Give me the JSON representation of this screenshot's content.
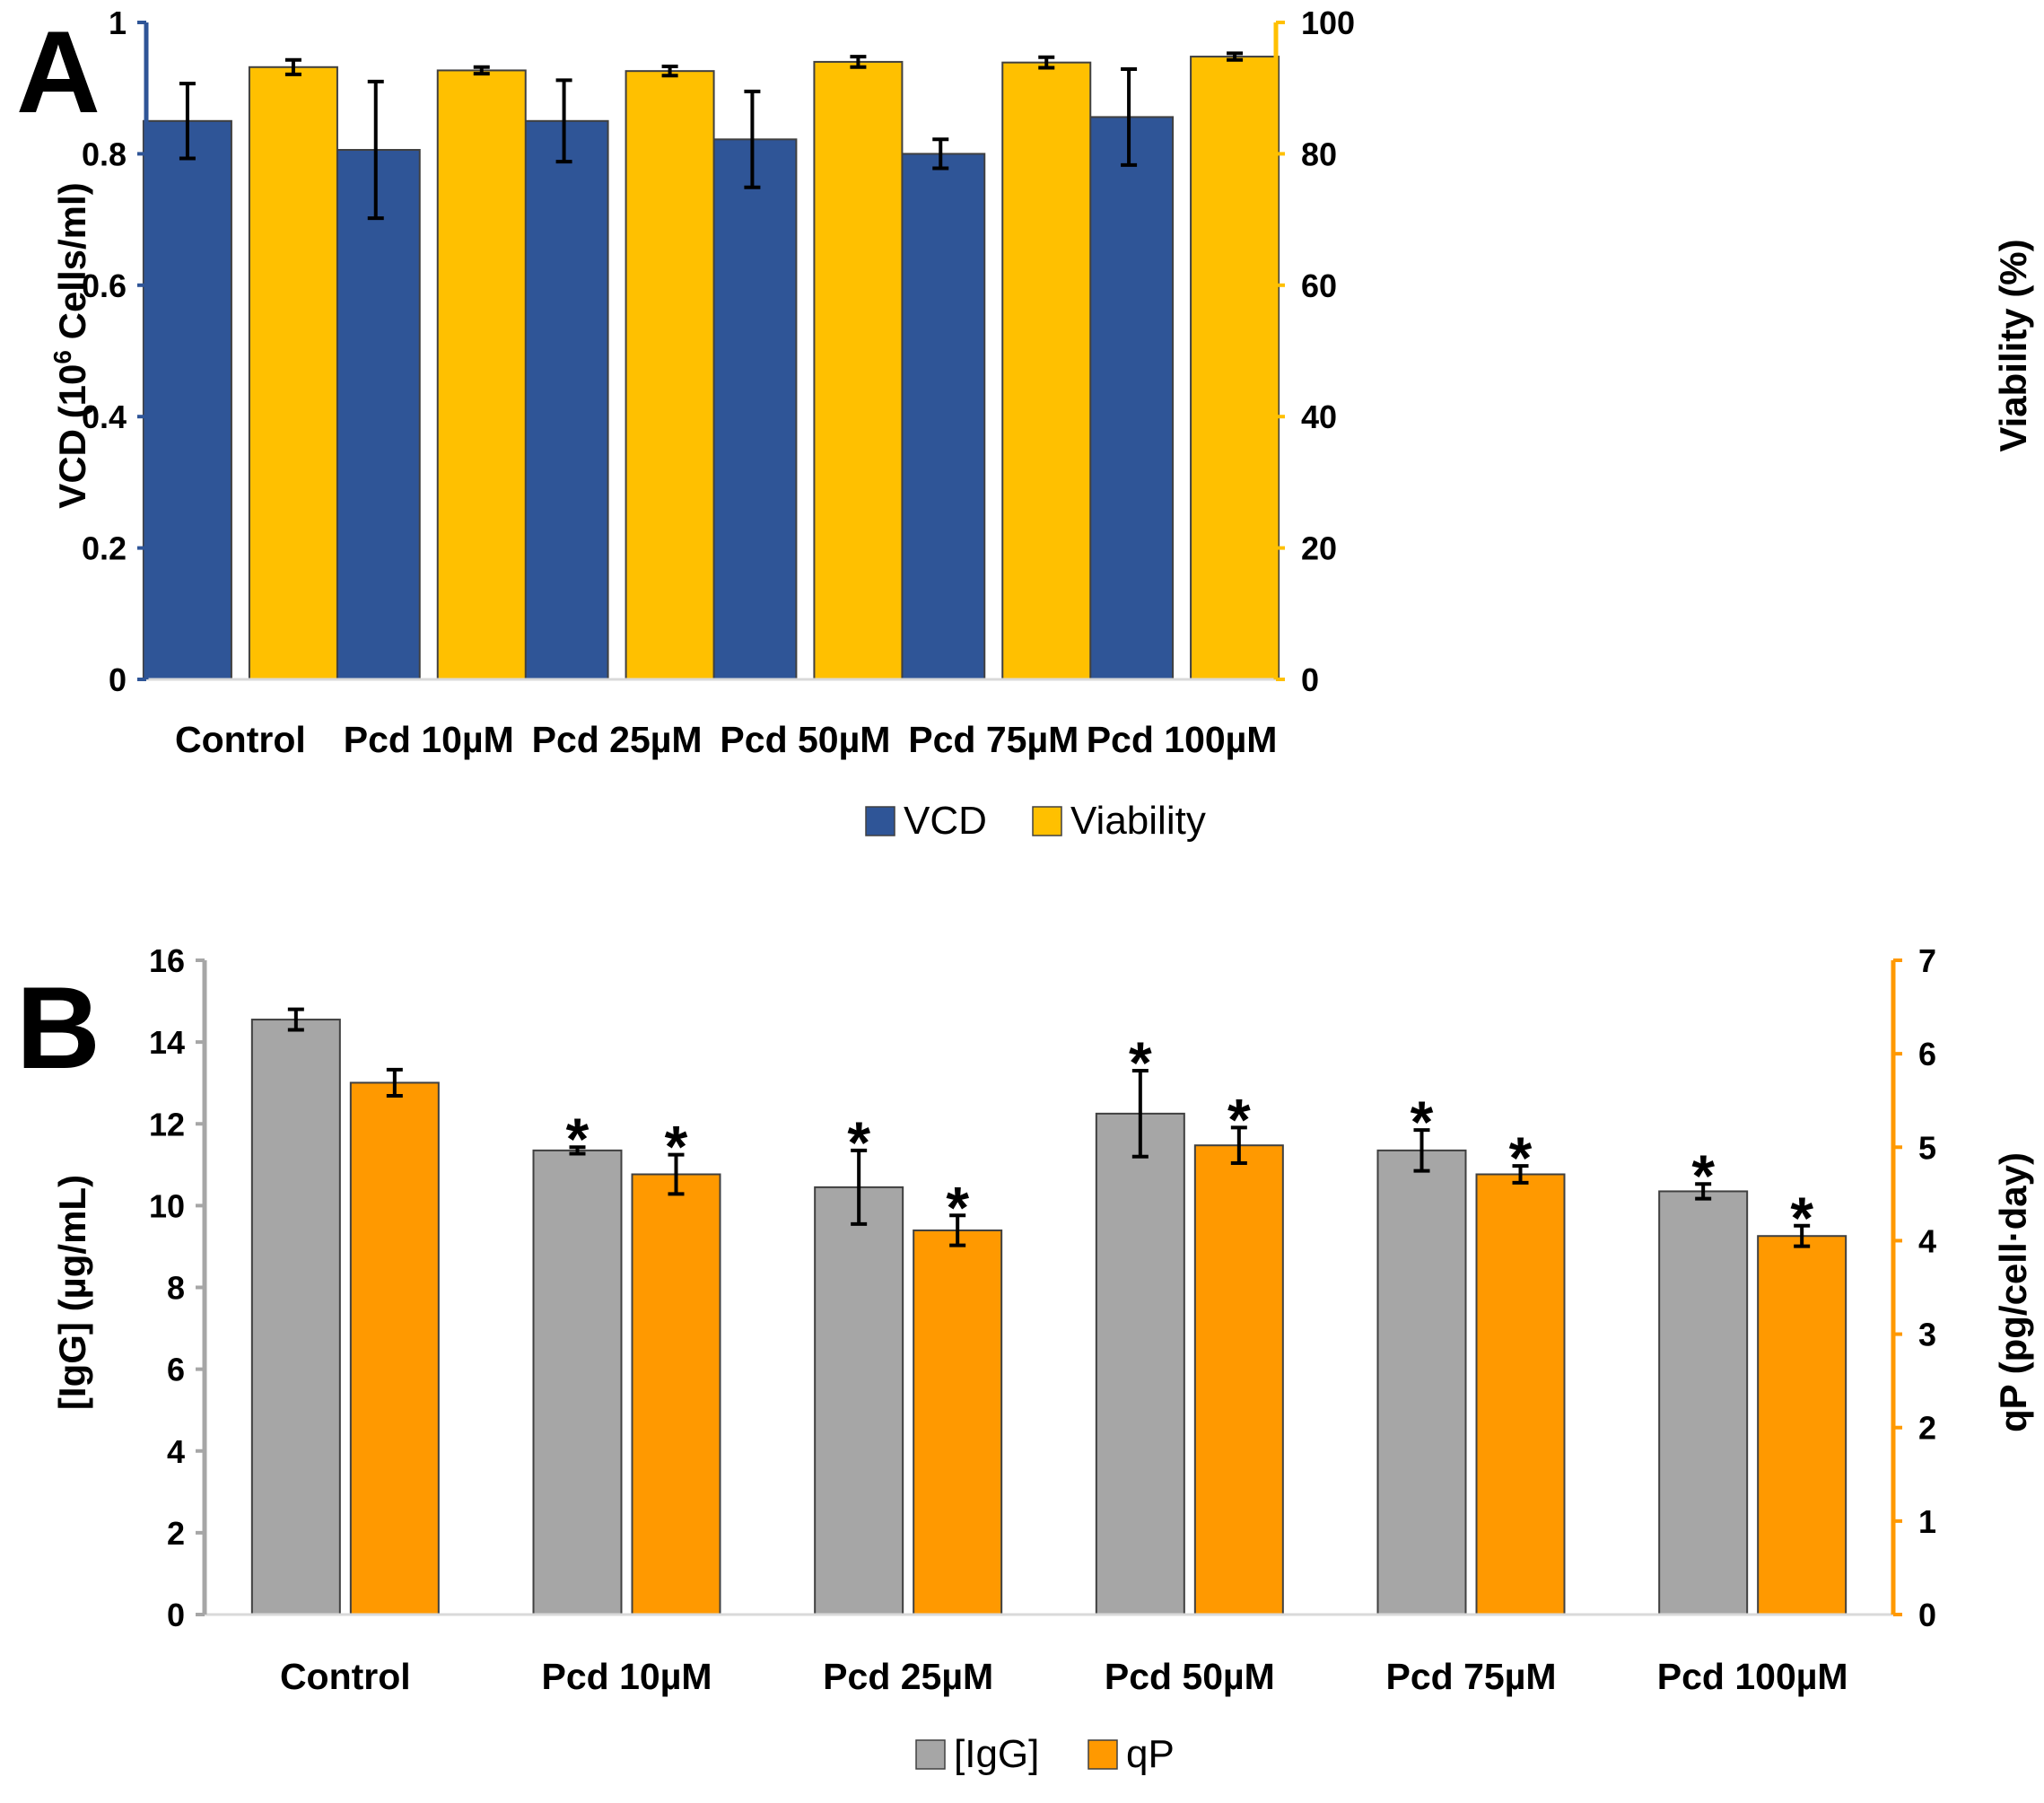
{
  "chart_data": [
    {
      "panel": "A",
      "type": "bar",
      "categories": [
        "Control",
        "Pcd 10µM",
        "Pcd 25µM",
        "Pcd 50µM",
        "Pcd 75µM",
        "Pcd 100µM"
      ],
      "ylabel": "VCD (10",
      "ylabel_sup": "6",
      "ylabel_end": " Cells/ml)",
      "ylim": [
        0,
        1
      ],
      "yticks": [
        "0",
        "0.2",
        "0.4",
        "0.6",
        "0.8",
        "1"
      ],
      "ylabel_right": "Viability (%)",
      "ylim_right": [
        0,
        100
      ],
      "yticks_right": [
        "0",
        "20",
        "40",
        "60",
        "80",
        "100"
      ],
      "series": [
        {
          "name": "VCD",
          "axis": "left",
          "color": "#2f5597",
          "values": [
            0.85,
            0.806,
            0.85,
            0.822,
            0.8,
            0.856
          ],
          "errors": [
            0.057,
            0.104,
            0.062,
            0.073,
            0.022,
            0.073
          ],
          "significant": [
            false,
            false,
            false,
            false,
            false,
            false
          ]
        },
        {
          "name": "Viability",
          "axis": "right",
          "color": "#ffc000",
          "values": [
            93.2,
            92.7,
            92.6,
            94.0,
            93.9,
            94.8
          ],
          "errors": [
            1.1,
            0.5,
            0.7,
            0.8,
            0.8,
            0.5
          ],
          "significant": [
            false,
            false,
            false,
            false,
            false,
            false
          ]
        }
      ],
      "left_axis_color": "#2f5597",
      "right_axis_color": "#ffc000",
      "legend": "bottom"
    },
    {
      "panel": "B",
      "type": "bar",
      "categories": [
        "Control",
        "Pcd 10µM",
        "Pcd 25µM",
        "Pcd 50µM",
        "Pcd 75µM",
        "Pcd 100µM"
      ],
      "ylabel": "[IgG] (µg/mL)",
      "ylim": [
        0,
        16
      ],
      "yticks": [
        "0",
        "2",
        "4",
        "6",
        "8",
        "10",
        "12",
        "14",
        "16"
      ],
      "ylabel_right": "qP (pg/cell·day)",
      "ylim_right": [
        0,
        7
      ],
      "yticks_right": [
        "0",
        "1",
        "2",
        "3",
        "4",
        "5",
        "6",
        "7"
      ],
      "series": [
        {
          "name": "[IgG]",
          "axis": "left",
          "color": "#a6a6a6",
          "values": [
            14.55,
            11.35,
            10.45,
            12.25,
            11.35,
            10.35
          ],
          "errors": [
            0.25,
            0.08,
            0.9,
            1.05,
            0.5,
            0.18
          ],
          "significant": [
            false,
            true,
            true,
            true,
            true,
            true
          ]
        },
        {
          "name": "qP",
          "axis": "right",
          "color": "#ff9900",
          "values": [
            5.69,
            4.71,
            4.11,
            5.02,
            4.71,
            4.05
          ],
          "errors": [
            0.14,
            0.21,
            0.16,
            0.19,
            0.09,
            0.11
          ],
          "significant": [
            false,
            true,
            true,
            true,
            true,
            true
          ]
        }
      ],
      "left_axis_color": "#a6a6a6",
      "right_axis_color": "#ff9900",
      "legend": "bottom",
      "annotation": "*"
    }
  ]
}
